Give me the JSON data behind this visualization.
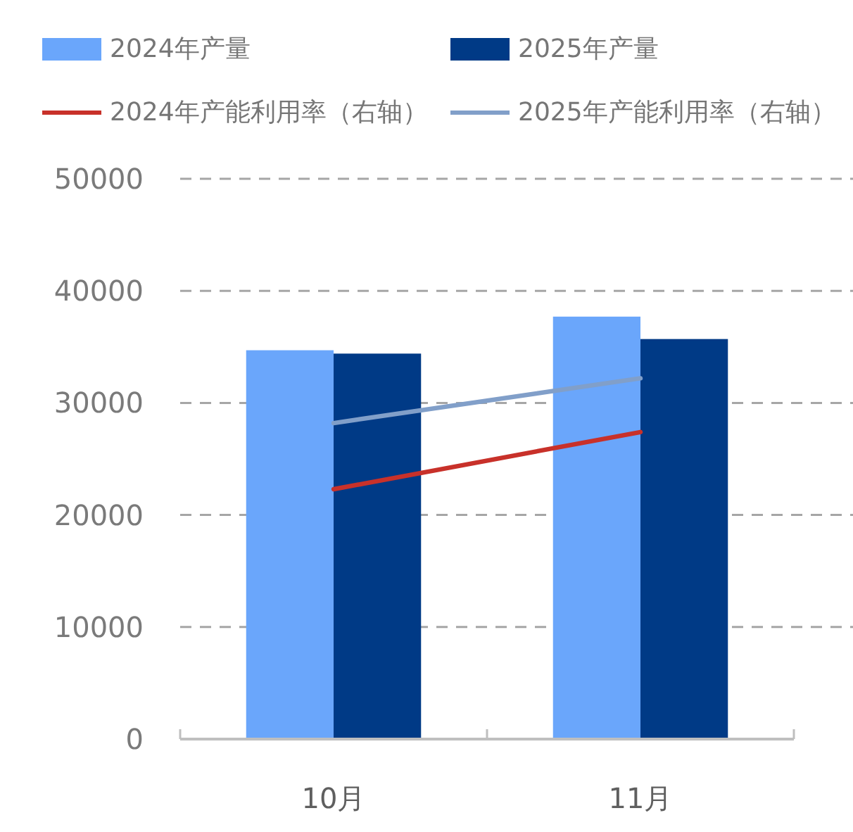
{
  "chart_data": {
    "type": "bar",
    "categories": [
      "10月",
      "11月"
    ],
    "series": [
      {
        "name": "2024年产量",
        "color": "#6aa6fb",
        "values": [
          34700,
          37700
        ]
      },
      {
        "name": "2025年产量",
        "color": "#003a86",
        "values": [
          34400,
          35700
        ]
      },
      {
        "name": "2024年产能利用率（右轴）",
        "type": "line",
        "color": "#c8312a",
        "values": [
          22300,
          27400
        ]
      },
      {
        "name": "2025年产能利用率（右轴）",
        "type": "line",
        "color": "#819fc9",
        "values": [
          28200,
          32200
        ]
      }
    ],
    "ylim": [
      0,
      50000
    ],
    "yticks": [
      0,
      10000,
      20000,
      30000,
      40000,
      50000
    ],
    "grid": "y",
    "legend": "top",
    "line_style": "solid"
  }
}
